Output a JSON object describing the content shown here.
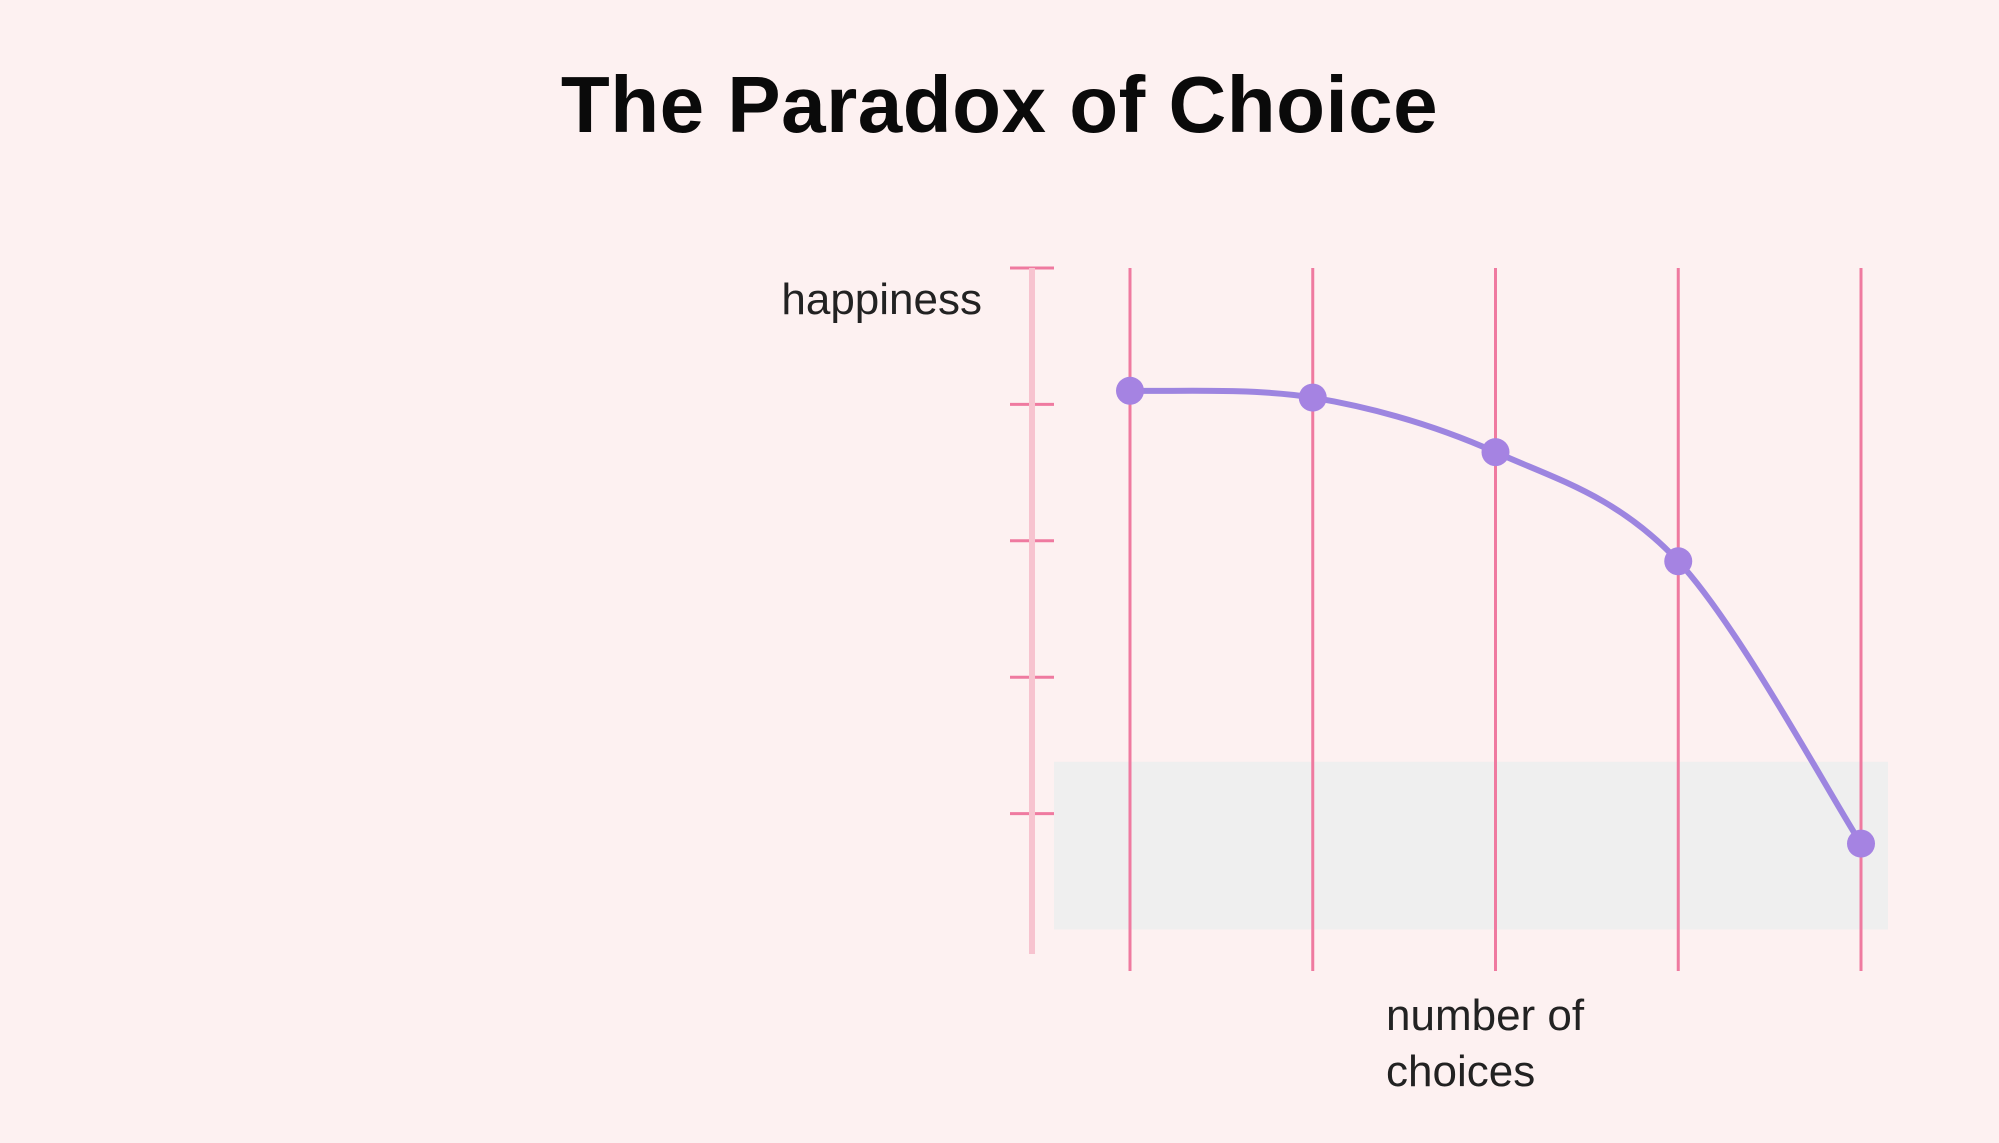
{
  "chart_data": {
    "type": "line",
    "title": "The Paradox of Choice",
    "ylabel": "happiness",
    "xlabel_lines": [
      "number of",
      "choices"
    ],
    "x": [
      1,
      2,
      3,
      4,
      5
    ],
    "ylim": [
      0,
      5
    ],
    "xlim": [
      0.5,
      5.5
    ],
    "series": [
      {
        "values": [
          4.1,
          4.05,
          3.65,
          2.85,
          0.78
        ]
      }
    ],
    "highlight_band": [
      0.15,
      1.38
    ],
    "grid": true,
    "colors": {
      "background": "#fdf1f1",
      "grid": "#ef7aa0",
      "line": "#9d85e0",
      "marker": "#a583e2",
      "band": "#efefef",
      "y_axis": "#f7c3cf",
      "x_axis_start": "#f7c3cf",
      "x_axis_mid": "#e86fb8",
      "x_axis_end": "#8c55d3",
      "title": "#0a0a0a",
      "text": "#222222"
    }
  }
}
